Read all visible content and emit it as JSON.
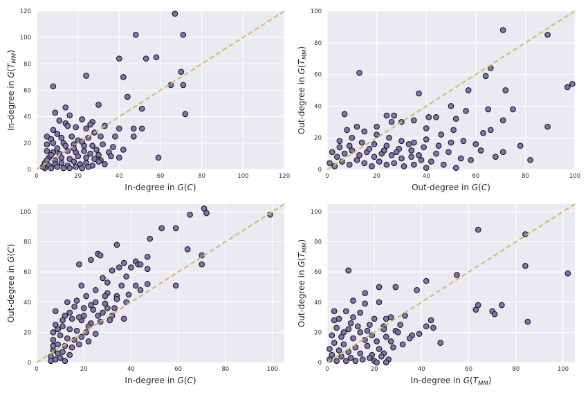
{
  "figure": {
    "background": "#ffffff",
    "panel_color": "#eaeaf2",
    "grid_color": "#ffffff",
    "marker_fill": "#8172b2",
    "marker_edge": "#1a1a1a",
    "diagonal_color": "#d8bb6e"
  },
  "chart_data": [
    {
      "type": "scatter",
      "xlabel": "In-degree in G(C)",
      "ylabel": "In-degree in G(T_MM)",
      "xlim": [
        0,
        120
      ],
      "ylim": [
        0,
        120
      ],
      "xticks": [
        0,
        20,
        40,
        60,
        80,
        100,
        120
      ],
      "yticks": [
        0,
        20,
        40,
        60,
        80,
        100,
        120
      ],
      "grid": true,
      "diagonal": true,
      "points": [
        [
          67,
          118
        ],
        [
          48,
          102
        ],
        [
          71,
          102
        ],
        [
          40,
          84
        ],
        [
          53,
          84
        ],
        [
          58,
          85
        ],
        [
          70,
          74
        ],
        [
          24,
          71
        ],
        [
          42,
          70
        ],
        [
          65,
          64
        ],
        [
          71,
          64
        ],
        [
          8,
          63
        ],
        [
          44,
          55
        ],
        [
          30,
          49
        ],
        [
          14,
          47
        ],
        [
          51,
          46
        ],
        [
          9,
          43
        ],
        [
          72,
          42
        ],
        [
          16,
          41
        ],
        [
          22,
          38
        ],
        [
          11,
          37
        ],
        [
          14,
          35
        ],
        [
          27,
          36
        ],
        [
          15,
          33
        ],
        [
          19,
          32
        ],
        [
          26,
          34
        ],
        [
          33,
          33
        ],
        [
          24,
          31
        ],
        [
          8,
          30
        ],
        [
          10,
          27
        ],
        [
          40,
          31
        ],
        [
          47,
          31
        ],
        [
          51,
          31
        ],
        [
          5,
          25
        ],
        [
          7,
          23
        ],
        [
          12,
          24
        ],
        [
          17,
          25
        ],
        [
          20,
          22
        ],
        [
          25,
          24
        ],
        [
          28,
          28
        ],
        [
          31,
          25
        ],
        [
          38,
          25
        ],
        [
          47,
          25
        ],
        [
          5,
          19
        ],
        [
          8,
          20
        ],
        [
          13,
          20
        ],
        [
          18,
          19
        ],
        [
          22,
          21
        ],
        [
          27,
          18
        ],
        [
          32,
          19
        ],
        [
          37,
          17
        ],
        [
          42,
          15
        ],
        [
          5,
          14
        ],
        [
          8,
          13
        ],
        [
          11,
          12
        ],
        [
          15,
          14
        ],
        [
          19,
          13
        ],
        [
          23,
          14
        ],
        [
          29,
          15
        ],
        [
          35,
          13
        ],
        [
          6,
          9
        ],
        [
          9,
          7
        ],
        [
          12,
          9
        ],
        [
          16,
          8
        ],
        [
          20,
          10
        ],
        [
          24,
          9
        ],
        [
          28,
          8
        ],
        [
          31,
          7
        ],
        [
          36,
          10
        ],
        [
          40,
          9
        ],
        [
          59,
          9
        ],
        [
          4,
          5
        ],
        [
          6,
          3
        ],
        [
          9,
          4
        ],
        [
          12,
          5
        ],
        [
          15,
          3
        ],
        [
          18,
          6
        ],
        [
          21,
          4
        ],
        [
          24,
          5
        ],
        [
          27,
          3
        ],
        [
          30,
          6
        ],
        [
          33,
          4
        ],
        [
          4,
          1
        ],
        [
          7,
          1
        ],
        [
          10,
          2
        ],
        [
          13,
          1
        ],
        [
          16,
          1
        ],
        [
          19,
          2
        ],
        [
          22,
          1
        ],
        [
          25,
          2
        ],
        [
          3,
          2
        ],
        [
          5,
          7
        ],
        [
          7,
          11
        ],
        [
          10,
          16
        ],
        [
          14,
          18
        ],
        [
          18,
          16
        ],
        [
          23,
          18
        ],
        [
          26,
          12
        ],
        [
          30,
          11
        ]
      ]
    },
    {
      "type": "scatter",
      "xlabel": "Out-degree in G(C)",
      "ylabel": "Out-degree in G(T_MM)",
      "xlim": [
        0,
        100
      ],
      "ylim": [
        0,
        100
      ],
      "xticks": [
        0,
        20,
        40,
        60,
        80,
        100
      ],
      "yticks": [
        0,
        20,
        40,
        60,
        80,
        100
      ],
      "grid": true,
      "diagonal": true,
      "points": [
        [
          71,
          88
        ],
        [
          89,
          85
        ],
        [
          13,
          61
        ],
        [
          66,
          64
        ],
        [
          64,
          59
        ],
        [
          57,
          50
        ],
        [
          72,
          50
        ],
        [
          37,
          48
        ],
        [
          75,
          38
        ],
        [
          41,
          33
        ],
        [
          50,
          40
        ],
        [
          56,
          37
        ],
        [
          65,
          38
        ],
        [
          66,
          25
        ],
        [
          71,
          31
        ],
        [
          89,
          27
        ],
        [
          78,
          15
        ],
        [
          82,
          6
        ],
        [
          99,
          54
        ],
        [
          97,
          52
        ],
        [
          7,
          35
        ],
        [
          24,
          34
        ],
        [
          27,
          34
        ],
        [
          35,
          31
        ],
        [
          44,
          33
        ],
        [
          52,
          32
        ],
        [
          30,
          30
        ],
        [
          40,
          26
        ],
        [
          51,
          25
        ],
        [
          55,
          18
        ],
        [
          60,
          16
        ],
        [
          63,
          23
        ],
        [
          71,
          11
        ],
        [
          68,
          8
        ],
        [
          8,
          25
        ],
        [
          12,
          27
        ],
        [
          15,
          24
        ],
        [
          20,
          22
        ],
        [
          25,
          20
        ],
        [
          30,
          18
        ],
        [
          35,
          17
        ],
        [
          40,
          19
        ],
        [
          45,
          15
        ],
        [
          50,
          17
        ],
        [
          5,
          18
        ],
        [
          10,
          20
        ],
        [
          14,
          17
        ],
        [
          19,
          16
        ],
        [
          24,
          15
        ],
        [
          29,
          13
        ],
        [
          34,
          12
        ],
        [
          39,
          14
        ],
        [
          44,
          10
        ],
        [
          49,
          11
        ],
        [
          54,
          7
        ],
        [
          58,
          6
        ],
        [
          2,
          11
        ],
        [
          4,
          8
        ],
        [
          7,
          10
        ],
        [
          10,
          12
        ],
        [
          13,
          9
        ],
        [
          16,
          11
        ],
        [
          19,
          8
        ],
        [
          22,
          10
        ],
        [
          26,
          9
        ],
        [
          30,
          7
        ],
        [
          34,
          8
        ],
        [
          38,
          6
        ],
        [
          42,
          5
        ],
        [
          47,
          3
        ],
        [
          52,
          1
        ],
        [
          1,
          4
        ],
        [
          3,
          2
        ],
        [
          6,
          5
        ],
        [
          9,
          3
        ],
        [
          12,
          6
        ],
        [
          15,
          4
        ],
        [
          18,
          2
        ],
        [
          21,
          5
        ],
        [
          24,
          3
        ],
        [
          27,
          4
        ],
        [
          31,
          2
        ],
        [
          35,
          3
        ],
        [
          40,
          1
        ],
        [
          5,
          14
        ],
        [
          9,
          15
        ],
        [
          17,
          13
        ],
        [
          23,
          12
        ],
        [
          28,
          11
        ],
        [
          33,
          16
        ],
        [
          37,
          9
        ],
        [
          20,
          27
        ],
        [
          26,
          30
        ],
        [
          46,
          22
        ],
        [
          62,
          12
        ]
      ]
    },
    {
      "type": "scatter",
      "xlabel": "In-degree in G(C)",
      "ylabel": "Out-degree in G(C)",
      "xlim": [
        0,
        105
      ],
      "ylim": [
        0,
        105
      ],
      "xticks": [
        0,
        20,
        40,
        60,
        80,
        100
      ],
      "yticks": [
        0,
        20,
        40,
        60,
        80,
        100
      ],
      "grid": true,
      "diagonal": true,
      "points": [
        [
          71,
          102
        ],
        [
          72,
          99
        ],
        [
          65,
          98
        ],
        [
          99,
          98
        ],
        [
          53,
          89
        ],
        [
          59,
          89
        ],
        [
          48,
          82
        ],
        [
          34,
          78
        ],
        [
          64,
          75
        ],
        [
          26,
          72
        ],
        [
          70,
          71
        ],
        [
          27,
          71
        ],
        [
          23,
          68
        ],
        [
          47,
          70
        ],
        [
          37,
          66
        ],
        [
          42,
          67
        ],
        [
          18,
          65
        ],
        [
          35,
          63
        ],
        [
          40,
          63
        ],
        [
          43,
          65
        ],
        [
          44,
          65
        ],
        [
          47,
          62
        ],
        [
          70,
          65
        ],
        [
          32,
          61
        ],
        [
          38,
          57
        ],
        [
          28,
          56
        ],
        [
          30,
          53
        ],
        [
          36,
          51
        ],
        [
          42,
          51
        ],
        [
          47,
          52
        ],
        [
          59,
          51
        ],
        [
          19,
          51
        ],
        [
          25,
          48
        ],
        [
          30,
          46
        ],
        [
          34,
          44
        ],
        [
          38,
          40
        ],
        [
          44,
          48
        ],
        [
          21,
          44
        ],
        [
          17,
          41
        ],
        [
          25,
          40
        ],
        [
          29,
          39
        ],
        [
          33,
          36
        ],
        [
          37,
          29
        ],
        [
          13,
          40
        ],
        [
          16,
          37
        ],
        [
          20,
          36
        ],
        [
          24,
          35
        ],
        [
          28,
          33
        ],
        [
          32,
          31
        ],
        [
          8,
          34
        ],
        [
          12,
          31
        ],
        [
          15,
          29
        ],
        [
          19,
          28
        ],
        [
          23,
          26
        ],
        [
          27,
          27
        ],
        [
          31,
          28
        ],
        [
          8,
          25
        ],
        [
          11,
          24
        ],
        [
          14,
          22
        ],
        [
          17,
          21
        ],
        [
          21,
          20
        ],
        [
          25,
          19
        ],
        [
          7,
          20
        ],
        [
          10,
          18
        ],
        [
          13,
          16
        ],
        [
          16,
          15
        ],
        [
          19,
          17
        ],
        [
          22,
          14
        ],
        [
          7,
          15
        ],
        [
          9,
          12
        ],
        [
          12,
          11
        ],
        [
          15,
          10
        ],
        [
          18,
          12
        ],
        [
          7,
          8
        ],
        [
          9,
          6
        ],
        [
          11,
          7
        ],
        [
          14,
          5
        ],
        [
          6,
          4
        ],
        [
          8,
          2
        ],
        [
          10,
          3
        ],
        [
          12,
          1
        ],
        [
          6,
          1
        ],
        [
          7,
          11
        ],
        [
          9,
          22
        ],
        [
          11,
          28
        ],
        [
          14,
          33
        ],
        [
          18,
          30
        ],
        [
          22,
          24
        ],
        [
          26,
          31
        ],
        [
          30,
          36
        ],
        [
          34,
          42
        ],
        [
          20,
          31
        ],
        [
          23,
          38
        ],
        [
          29,
          44
        ],
        [
          39,
          45
        ]
      ]
    },
    {
      "type": "scatter",
      "xlabel": "In-degree in G(T_MM)",
      "ylabel": "Out-degree in G(T_MM)",
      "xlim": [
        0,
        105
      ],
      "ylim": [
        0,
        105
      ],
      "xticks": [
        0,
        20,
        40,
        60,
        80,
        100
      ],
      "yticks": [
        0,
        20,
        40,
        60,
        80,
        100
      ],
      "grid": true,
      "diagonal": true,
      "points": [
        [
          64,
          88
        ],
        [
          84,
          85
        ],
        [
          9,
          61
        ],
        [
          55,
          58
        ],
        [
          102,
          59
        ],
        [
          42,
          54
        ],
        [
          84,
          64
        ],
        [
          22,
          50
        ],
        [
          29,
          50
        ],
        [
          16,
          46
        ],
        [
          38,
          48
        ],
        [
          11,
          41
        ],
        [
          16,
          39
        ],
        [
          22,
          40
        ],
        [
          63,
          35
        ],
        [
          64,
          38
        ],
        [
          70,
          34
        ],
        [
          71,
          32
        ],
        [
          74,
          38
        ],
        [
          85,
          27
        ],
        [
          3,
          34
        ],
        [
          8,
          34
        ],
        [
          14,
          33
        ],
        [
          20,
          29
        ],
        [
          25,
          29
        ],
        [
          33,
          31
        ],
        [
          44,
          28
        ],
        [
          5,
          29
        ],
        [
          10,
          26
        ],
        [
          18,
          25
        ],
        [
          24,
          24
        ],
        [
          29,
          21
        ],
        [
          36,
          18
        ],
        [
          42,
          24
        ],
        [
          48,
          13
        ],
        [
          4,
          23
        ],
        [
          9,
          22
        ],
        [
          14,
          20
        ],
        [
          19,
          18
        ],
        [
          25,
          17
        ],
        [
          30,
          20
        ],
        [
          35,
          16
        ],
        [
          2,
          18
        ],
        [
          6,
          17
        ],
        [
          11,
          16
        ],
        [
          16,
          15
        ],
        [
          21,
          14
        ],
        [
          27,
          14
        ],
        [
          32,
          12
        ],
        [
          3,
          13
        ],
        [
          7,
          12
        ],
        [
          12,
          10
        ],
        [
          17,
          11
        ],
        [
          22,
          9
        ],
        [
          28,
          10
        ],
        [
          1,
          9
        ],
        [
          5,
          8
        ],
        [
          9,
          7
        ],
        [
          14,
          6
        ],
        [
          19,
          5
        ],
        [
          24,
          6
        ],
        [
          2,
          5
        ],
        [
          6,
          4
        ],
        [
          10,
          3
        ],
        [
          15,
          2
        ],
        [
          20,
          1
        ],
        [
          26,
          2
        ],
        [
          1,
          2
        ],
        [
          4,
          1
        ],
        [
          8,
          1
        ],
        [
          12,
          1
        ],
        [
          18,
          3
        ],
        [
          23,
          4
        ],
        [
          21,
          0
        ],
        [
          25,
          0
        ],
        [
          7,
          20
        ],
        [
          13,
          24
        ],
        [
          17,
          21
        ],
        [
          24,
          22
        ],
        [
          27,
          30
        ],
        [
          31,
          25
        ],
        [
          39,
          19
        ],
        [
          45,
          23
        ],
        [
          3,
          28
        ],
        [
          11,
          30
        ]
      ]
    }
  ]
}
